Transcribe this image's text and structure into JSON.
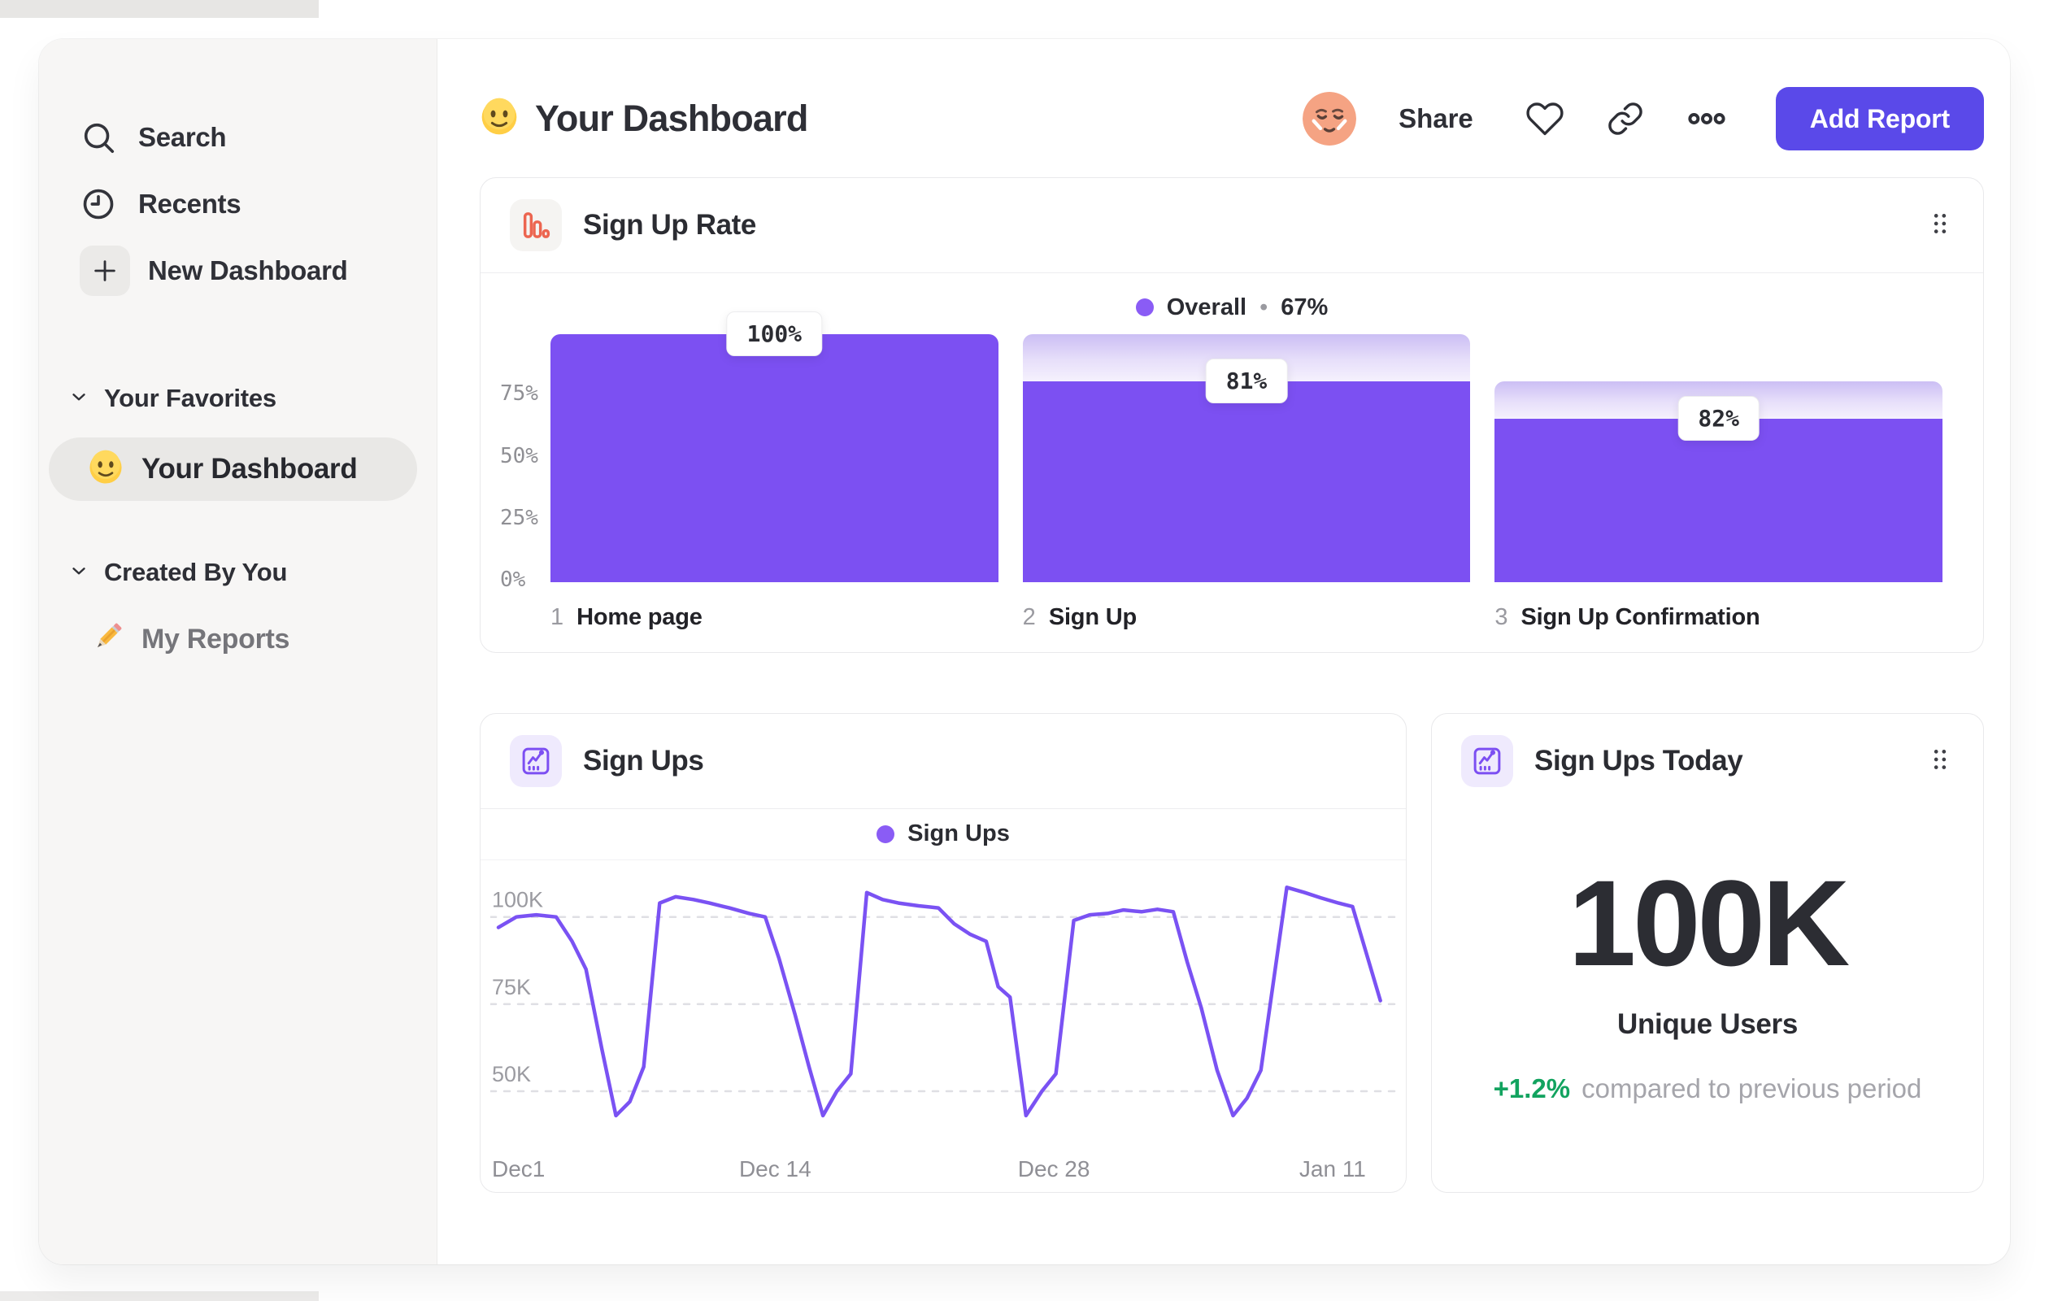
{
  "header": {
    "title": "Your Dashboard",
    "share_label": "Share",
    "add_report_label": "Add Report"
  },
  "sidebar": {
    "items": [
      {
        "label": "Search",
        "icon": "search-icon"
      },
      {
        "label": "Recents",
        "icon": "clock-icon"
      },
      {
        "label": "New Dashboard",
        "icon": "plus-icon"
      }
    ],
    "sections": [
      {
        "label": "Your Favorites",
        "items": [
          {
            "label": "Your Dashboard",
            "icon": "smiley-emoji",
            "selected": true
          }
        ]
      },
      {
        "label": "Created By You",
        "items": [
          {
            "label": "My Reports",
            "icon": "pencil-emoji",
            "selected": false
          }
        ]
      }
    ]
  },
  "funnel_card": {
    "title": "Sign Up Rate",
    "icon": "funnel-chart-icon",
    "legend": {
      "name": "Overall",
      "separator": "•",
      "value": "67%"
    },
    "y_ticks": [
      "75%",
      "50%",
      "25%",
      "0%"
    ],
    "steps": [
      {
        "index": "1",
        "name": "Home page",
        "label": "100%"
      },
      {
        "index": "2",
        "name": "Sign Up",
        "label": "81%"
      },
      {
        "index": "3",
        "name": "Sign Up Confirmation",
        "label": "82%"
      }
    ]
  },
  "line_card": {
    "title": "Sign Ups",
    "icon": "line-chart-icon",
    "legend": {
      "name": "Sign Ups"
    }
  },
  "stat_card": {
    "title": "Sign Ups Today",
    "icon": "line-chart-icon",
    "value": "100K",
    "unit_label": "Unique Users",
    "delta": "+1.2%",
    "delta_note": "compared to previous period"
  },
  "colors": {
    "bar_purple": "#7c50f2",
    "button_purple": "#5a49e9",
    "legend_dot_purple": "#8a5cf5",
    "line_stroke_purple": "#7a52f3",
    "funnel_icon_orange": "#ec6550",
    "delta_green": "#12a35f",
    "bar_gradient_top": "#cbbef4",
    "bar_gradient_bottom": "#f5f1fd"
  },
  "chart_data": [
    {
      "type": "bar",
      "title": "Sign Up Rate",
      "overall_conversion": "67%",
      "categories": [
        "Home page",
        "Sign Up",
        "Sign Up Confirmation"
      ],
      "step_conversion_pct": [
        100,
        81,
        82
      ],
      "absolute_pct": [
        100,
        81,
        66
      ],
      "gradient_top_pct": [
        100,
        100,
        81
      ],
      "ytick_values": [
        75,
        50,
        25,
        0
      ],
      "ylim": [
        0,
        100
      ],
      "grid": false,
      "legend_position": "top-center"
    },
    {
      "type": "line",
      "title": "Sign Ups",
      "series": [
        {
          "name": "Sign Ups",
          "points_day_valueK": [
            [
              0,
              97
            ],
            [
              0.9,
              100
            ],
            [
              1.9,
              100.6
            ],
            [
              2.9,
              100
            ],
            [
              3.7,
              93
            ],
            [
              4.4,
              85
            ],
            [
              5.2,
              62
            ],
            [
              5.9,
              43
            ],
            [
              6.6,
              47
            ],
            [
              7.3,
              57
            ],
            [
              8.1,
              104
            ],
            [
              8.9,
              105.8
            ],
            [
              9.8,
              105
            ],
            [
              10.6,
              104
            ],
            [
              11.6,
              102.6
            ],
            [
              12.6,
              101
            ],
            [
              13.4,
              100
            ],
            [
              14.1,
              88
            ],
            [
              14.9,
              72
            ],
            [
              15.6,
              57
            ],
            [
              16.3,
              43
            ],
            [
              17,
              50
            ],
            [
              17.7,
              55
            ],
            [
              18.5,
              107
            ],
            [
              19.3,
              105
            ],
            [
              20.1,
              104
            ],
            [
              21.1,
              103.2
            ],
            [
              22.1,
              102.6
            ],
            [
              22.9,
              98
            ],
            [
              23.7,
              95
            ],
            [
              24.5,
              93
            ],
            [
              25.1,
              80
            ],
            [
              25.7,
              77
            ],
            [
              26.5,
              43
            ],
            [
              27.3,
              50
            ],
            [
              28,
              55
            ],
            [
              28.9,
              99
            ],
            [
              29.7,
              100.6
            ],
            [
              30.6,
              101
            ],
            [
              31.4,
              102
            ],
            [
              32.3,
              101.5
            ],
            [
              33.1,
              102.2
            ],
            [
              33.9,
              101.5
            ],
            [
              34.6,
              87
            ],
            [
              35.3,
              74
            ],
            [
              36.1,
              56
            ],
            [
              36.9,
              43
            ],
            [
              37.6,
              48
            ],
            [
              38.3,
              56
            ],
            [
              39.6,
              108.5
            ],
            [
              40.5,
              107
            ],
            [
              41.3,
              105.5
            ],
            [
              42.2,
              104
            ],
            [
              42.9,
              103
            ],
            [
              44.3,
              76
            ]
          ]
        }
      ],
      "y_ticks": [
        {
          "label": "100K",
          "value": 100
        },
        {
          "label": "75K",
          "value": 75
        },
        {
          "label": "50K",
          "value": 50
        }
      ],
      "x_ticks": [
        {
          "label": "Dec1",
          "day": 0
        },
        {
          "label": "Dec 14",
          "day": 13.9
        },
        {
          "label": "Dec 28",
          "day": 27.9
        },
        {
          "label": "Jan 11",
          "day": 41.9
        }
      ],
      "xlim_days": [
        0,
        44.6
      ],
      "ylim_k": [
        36,
        113
      ],
      "grid": "dashed-horizontal",
      "legend_position": "top-center"
    },
    {
      "type": "stat",
      "title": "Sign Ups Today",
      "value": "100K",
      "label": "Unique Users",
      "delta": "+1.2%",
      "note": "compared to previous period"
    }
  ]
}
